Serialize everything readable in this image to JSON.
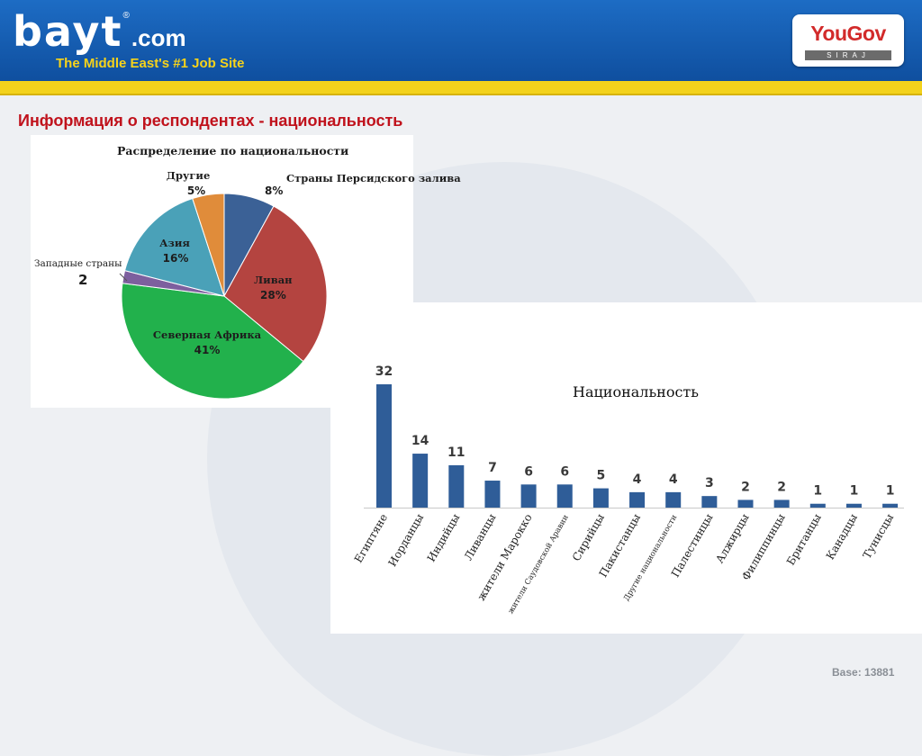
{
  "header": {
    "logo_text": "bayt",
    "logo_domain": ".com",
    "logo_reg": "®",
    "tagline": "The Middle East's #1 Job Site",
    "brand_name": "YouGov",
    "brand_sub": "SIRAJ"
  },
  "colors": {
    "header_blue": "#1461b5",
    "stripe_yellow": "#f3d21c",
    "title_red": "#c0121c",
    "bar_blue": "#2f5d98"
  },
  "slide": {
    "title": "Информация о респондентах - национальность",
    "base": "Base: 13881"
  },
  "chart_data": [
    {
      "type": "pie",
      "title": "Распределение по национальности",
      "slices": [
        {
          "label": "Страны Персидского залива",
          "pct_label": "8%",
          "value": 8,
          "color": "#3b6196"
        },
        {
          "label": "Ливан",
          "pct_label": "28%",
          "value": 28,
          "color": "#b44440"
        },
        {
          "label": "Северная Африка",
          "pct_label": "41%",
          "value": 41,
          "color": "#22b14c"
        },
        {
          "label": "Западные страны",
          "pct_label": "2",
          "value": 2,
          "color": "#7d5f9e"
        },
        {
          "label": "Азия",
          "pct_label": "16%",
          "value": 16,
          "color": "#4aa1b8"
        },
        {
          "label": "Другие",
          "pct_label": "5%",
          "value": 5,
          "color": "#e08c3a"
        }
      ]
    },
    {
      "type": "bar",
      "title": "Национальность",
      "categories": [
        "Египтяне",
        "Иорданцы",
        "Индийцы",
        "Ливанцы",
        "жители Марокко",
        "жители Саудовской Аравии",
        "Сирийцы",
        "Пакистанцы",
        "Другие национальности",
        "Палестинцы",
        "Алжирцы",
        "Филиппинцы",
        "Британцы",
        "Канадцы",
        "Тунисцы"
      ],
      "values": [
        32,
        14,
        11,
        7,
        6,
        6,
        5,
        4,
        4,
        3,
        2,
        2,
        1,
        1,
        1
      ],
      "color": "#2f5d98"
    }
  ]
}
